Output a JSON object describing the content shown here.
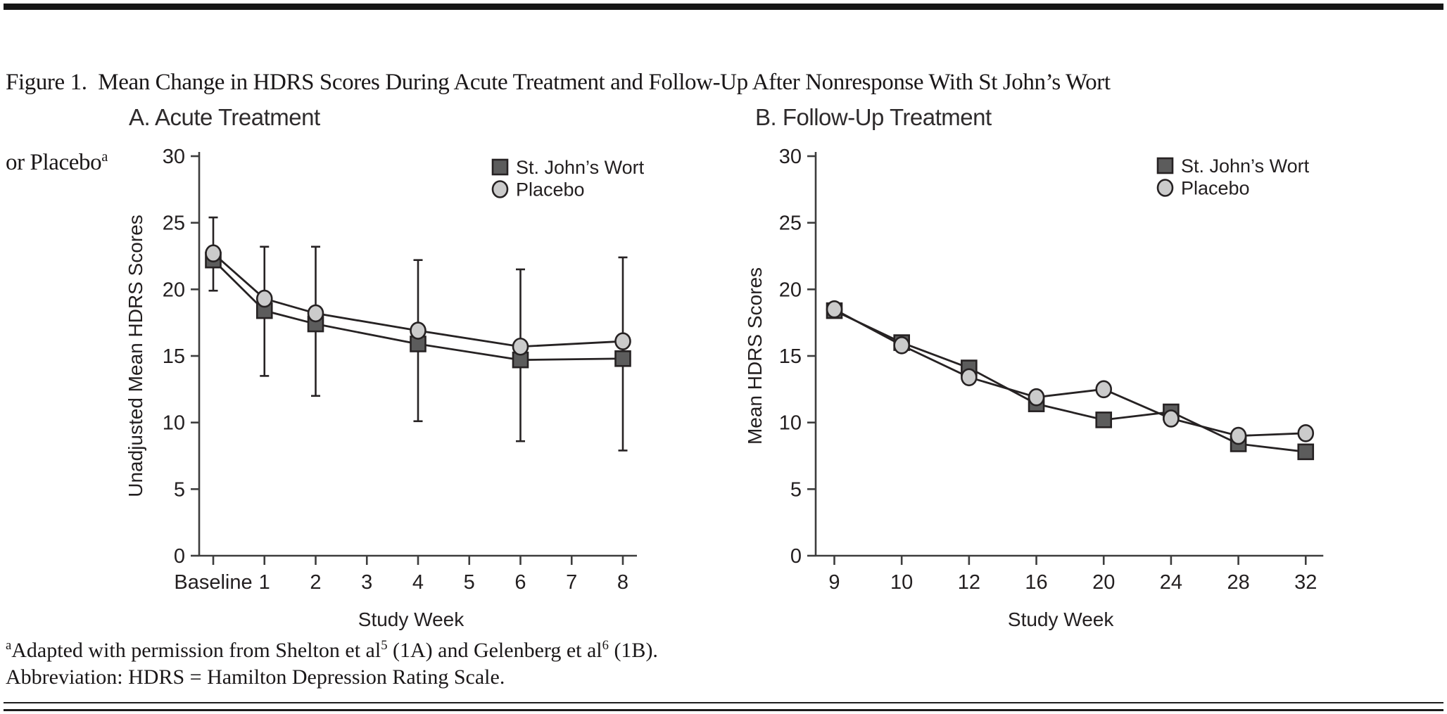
{
  "figure": {
    "title_line1": "Figure 1.  Mean Change in HDRS Scores During Acute Treatment and Follow-Up After Nonresponse With St John’s Wort",
    "title_line2": "or Placebo",
    "title_superscript": "a"
  },
  "footnote": {
    "sup_a": "a",
    "part1": "Adapted with permission from Shelton et al",
    "ref1": "5",
    "part2": " (1A) and Gelenberg et al",
    "ref2": "6",
    "part3": " (1B).",
    "line2": "Abbreviation: HDRS = Hamilton Depression Rating Scale."
  },
  "colors": {
    "sjw_fill": "#5c5c5c",
    "placebo_fill": "#cbcbcb",
    "line": "#262223",
    "axis": "#3d3d3d",
    "text": "#231f20"
  },
  "chart_data": [
    {
      "id": "panelA",
      "type": "line",
      "title": "A. Acute Treatment",
      "xlabel": "Study Week",
      "ylabel": "Unadjusted Mean HDRS Scores",
      "ylim": [
        0,
        30
      ],
      "yticks": [
        0,
        5,
        10,
        15,
        20,
        25,
        30
      ],
      "grid": false,
      "legend_position": "top-right",
      "categories": [
        "Baseline",
        "1",
        "2",
        "3",
        "4",
        "5",
        "6",
        "7",
        "8"
      ],
      "data_x": [
        "Baseline",
        "1",
        "2",
        "4",
        "6",
        "8"
      ],
      "series": [
        {
          "name": "St. John’s Wort",
          "marker": "square",
          "color": "#5c5c5c",
          "values": [
            22.2,
            18.4,
            17.4,
            15.9,
            14.7,
            14.8
          ]
        },
        {
          "name": "Placebo",
          "marker": "circle",
          "color": "#cbcbcb",
          "values": [
            22.7,
            19.3,
            18.2,
            16.9,
            15.7,
            16.1
          ]
        }
      ],
      "error_bars": [
        [
          19.9,
          25.4
        ],
        [
          13.5,
          23.2
        ],
        [
          12.0,
          23.2
        ],
        [
          10.1,
          22.2
        ],
        [
          8.6,
          21.5
        ],
        [
          7.9,
          22.4
        ]
      ]
    },
    {
      "id": "panelB",
      "type": "line",
      "title": "B. Follow-Up Treatment",
      "xlabel": "Study Week",
      "ylabel": "Mean HDRS Scores",
      "ylim": [
        0,
        30
      ],
      "yticks": [
        0,
        5,
        10,
        15,
        20,
        25,
        30
      ],
      "grid": false,
      "legend_position": "top-right",
      "categories": [
        "9",
        "10",
        "12",
        "16",
        "20",
        "24",
        "28",
        "32"
      ],
      "data_x": [
        "9",
        "10",
        "12",
        "16",
        "20",
        "24",
        "28",
        "32"
      ],
      "series": [
        {
          "name": "St. John’s Wort",
          "marker": "square",
          "color": "#5c5c5c",
          "values": [
            18.4,
            16.0,
            14.1,
            11.4,
            10.2,
            10.8,
            8.4,
            7.8
          ]
        },
        {
          "name": "Placebo",
          "marker": "circle",
          "color": "#cbcbcb",
          "values": [
            18.5,
            15.8,
            13.4,
            11.9,
            12.5,
            10.3,
            9.0,
            9.2
          ]
        }
      ],
      "error_bars": []
    }
  ]
}
